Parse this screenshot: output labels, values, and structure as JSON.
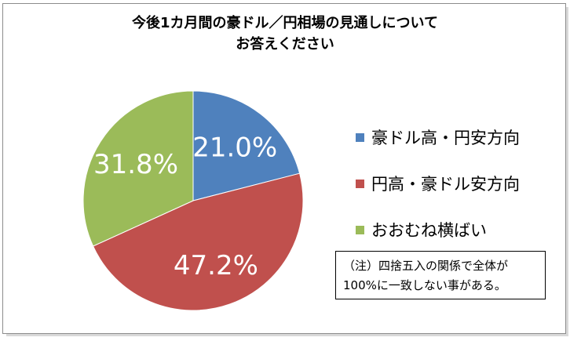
{
  "chart_data": {
    "type": "pie",
    "title": "今後1カ月間の豪ドル／円相場の見通しについてお答えください",
    "title_lines": [
      "今後1カ月間の豪ドル／円相場の見通しについて",
      "お答えください"
    ],
    "slices": [
      {
        "label": "豪ドル高・円安方向",
        "value": 21.0,
        "value_label": "21.0%",
        "color": "#4f81bd"
      },
      {
        "label": "円高・豪ドル安方向",
        "value": 47.2,
        "value_label": "47.2%",
        "color": "#c0504d"
      },
      {
        "label": "おおむね横ばい",
        "value": 31.8,
        "value_label": "31.8%",
        "color": "#9bbb59"
      }
    ],
    "start": "12 o'clock, clockwise",
    "legend_placement": "right"
  },
  "note": {
    "line1": "（注）四捨五入の関係で全体が",
    "line2": "100%に一致しない事がある。"
  }
}
